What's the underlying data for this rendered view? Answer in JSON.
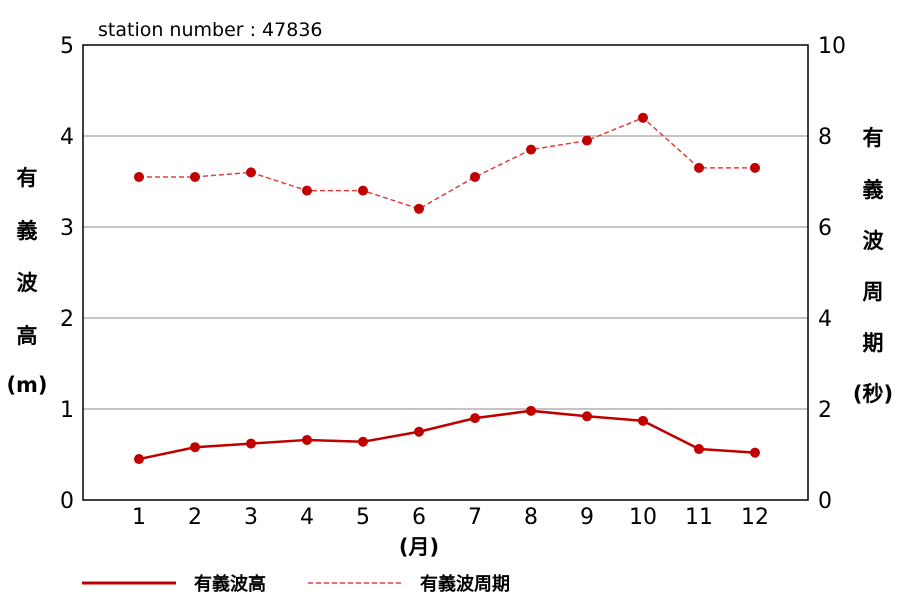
{
  "chart_data": {
    "type": "line",
    "title": "station number : 47836",
    "categories": [
      "1",
      "2",
      "3",
      "4",
      "5",
      "6",
      "7",
      "8",
      "9",
      "10",
      "11",
      "12"
    ],
    "xlabel": "(月)",
    "ylabel_left_chars": [
      "有",
      "義",
      "波",
      "高",
      "(m)"
    ],
    "ylabel_right_chars": [
      "有",
      "義",
      "波",
      "周",
      "期",
      "(秒)"
    ],
    "ylim_left": [
      0,
      5
    ],
    "ylim_right": [
      0,
      10
    ],
    "yticks_left": [
      "0",
      "1",
      "2",
      "3",
      "4",
      "5"
    ],
    "yticks_right": [
      "0",
      "2",
      "4",
      "6",
      "8",
      "10"
    ],
    "grid": true,
    "series": [
      {
        "name": "有義波高",
        "axis": "left",
        "style": "solid",
        "color": "#c00000",
        "values": [
          0.45,
          0.58,
          0.62,
          0.66,
          0.64,
          0.75,
          0.9,
          0.98,
          0.92,
          0.87,
          0.56,
          0.52
        ]
      },
      {
        "name": "有義波周期",
        "axis": "right",
        "style": "dashed",
        "color": "#c00000",
        "values": [
          7.1,
          7.1,
          7.2,
          6.8,
          6.8,
          6.4,
          7.1,
          7.7,
          7.9,
          8.4,
          7.3,
          7.3
        ]
      }
    ],
    "legend_position": "bottom-left"
  }
}
